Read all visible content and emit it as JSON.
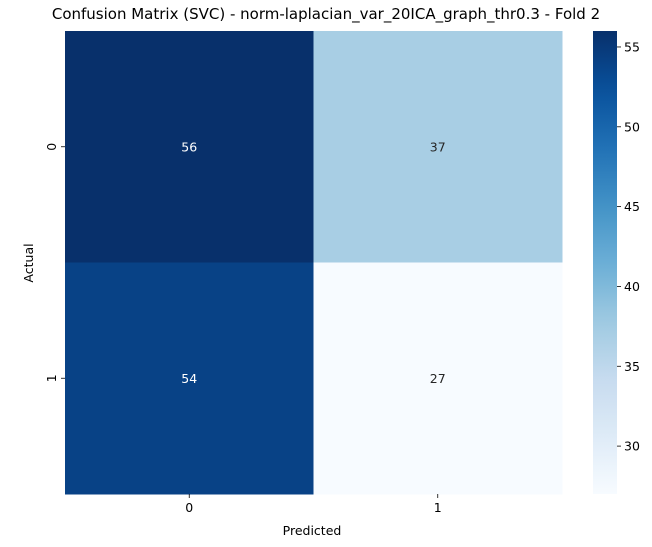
{
  "chart_data": {
    "type": "heatmap",
    "title": "Confusion Matrix (SVC) - norm-laplacian_var_20ICA_graph_thr0.3 - Fold 2",
    "xlabel": "Predicted",
    "ylabel": "Actual",
    "x_categories": [
      "0",
      "1"
    ],
    "y_categories": [
      "0",
      "1"
    ],
    "values": [
      [
        56,
        37
      ],
      [
        54,
        27
      ]
    ],
    "colormap": "Blues",
    "color_range": [
      27,
      56
    ],
    "colorbar_ticks": [
      "30",
      "35",
      "40",
      "45",
      "50",
      "55"
    ],
    "colorbar_tick_values": [
      30,
      35,
      40,
      45,
      50,
      55
    ],
    "annotations": true
  }
}
